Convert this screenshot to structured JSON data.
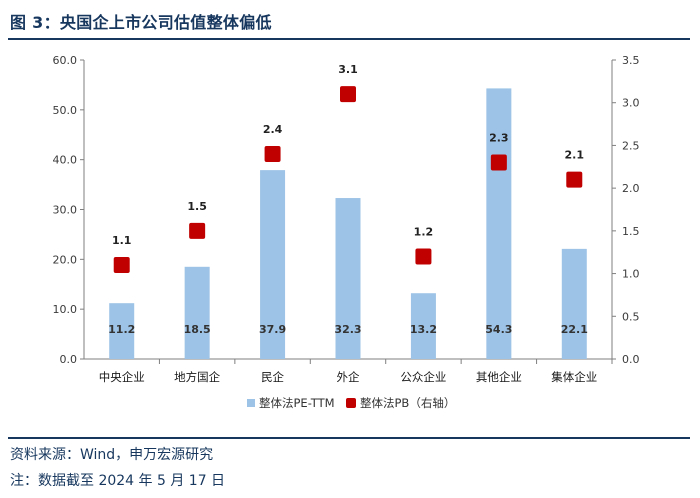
{
  "header": {
    "title": "图 3：央国企上市公司估值整体偏低"
  },
  "footer": {
    "source": "资料来源：Wind，申万宏源研究",
    "note": "注：数据截至 2024 年 5 月 17 日"
  },
  "chart_data": {
    "type": "bar",
    "categories": [
      "中央企业",
      "地方国企",
      "民企",
      "外企",
      "公众企业",
      "其他企业",
      "集体企业"
    ],
    "series": [
      {
        "name": "整体法PE-TTM",
        "type": "bar",
        "axis": "left",
        "values": [
          11.2,
          18.5,
          37.9,
          32.3,
          13.2,
          54.3,
          22.1
        ],
        "color": "#9dc3e6"
      },
      {
        "name": "整体法PB（右轴）",
        "type": "scatter",
        "axis": "right",
        "values": [
          1.1,
          1.5,
          2.4,
          3.1,
          1.2,
          2.3,
          2.1
        ],
        "color": "#c00000"
      }
    ],
    "y_left": {
      "ylim": [
        0,
        60
      ],
      "ticks": [
        "0.0",
        "10.0",
        "20.0",
        "30.0",
        "40.0",
        "50.0",
        "60.0"
      ]
    },
    "y_right": {
      "ylim": [
        0,
        3.5
      ],
      "ticks": [
        "0.0",
        "0.5",
        "1.0",
        "1.5",
        "2.0",
        "2.5",
        "3.0",
        "3.5"
      ]
    },
    "grid": false,
    "legend_position": "bottom"
  }
}
